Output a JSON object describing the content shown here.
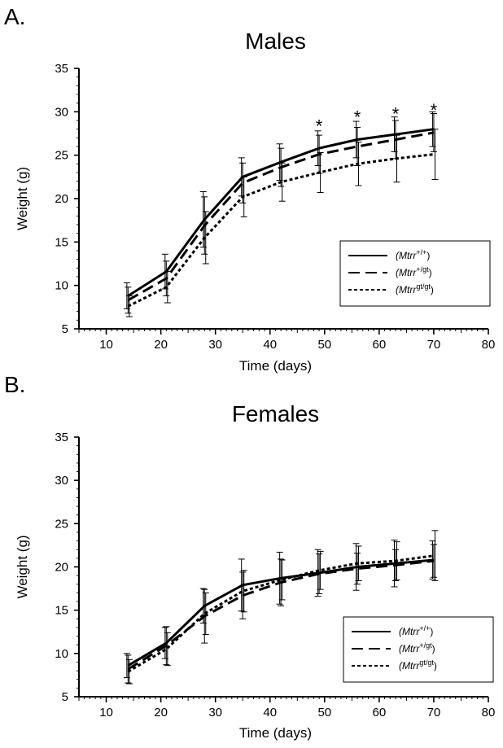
{
  "chart_data": [
    {
      "panel": "A.",
      "type": "line",
      "title": "Males",
      "xlabel": "Time (days)",
      "ylabel": "Weight (g)",
      "xlim": [
        5,
        80
      ],
      "ylim": [
        5,
        35
      ],
      "xticks": [
        10,
        20,
        30,
        40,
        50,
        60,
        70,
        80
      ],
      "yticks": [
        5,
        10,
        15,
        20,
        25,
        30,
        35
      ],
      "x": [
        14,
        21,
        28,
        35,
        42,
        49,
        56,
        63,
        70
      ],
      "series": [
        {
          "name": "(Mtrr+/+)",
          "legend_main": "(Mtrr",
          "legend_sup": "+/+",
          "legend_close": ")",
          "style": "solid",
          "values": [
            8.8,
            11.6,
            17.6,
            22.5,
            24.2,
            25.8,
            26.8,
            27.4,
            28.0
          ],
          "err": [
            1.5,
            2.0,
            3.2,
            2.2,
            2.1,
            2.0,
            2.1,
            2.0,
            2.0
          ]
        },
        {
          "name": "(Mtrr+/gt)",
          "legend_main": "(Mtrr",
          "legend_sup": "+/gt",
          "legend_close": ")",
          "style": "dashed",
          "values": [
            8.3,
            10.8,
            16.9,
            21.8,
            23.6,
            25.1,
            26.0,
            26.8,
            27.6
          ],
          "err": [
            1.5,
            2.0,
            3.3,
            2.3,
            2.2,
            2.2,
            2.2,
            2.2,
            2.2
          ]
        },
        {
          "name": "(Mtrrgt/gt)",
          "legend_main": "(Mtrr",
          "legend_sup": "gt/gt",
          "legend_close": ")",
          "style": "dotted",
          "values": [
            7.6,
            9.8,
            15.5,
            20.2,
            21.9,
            23.0,
            24.0,
            24.6,
            25.1
          ],
          "err": [
            1.2,
            1.8,
            3.0,
            2.3,
            2.2,
            2.3,
            2.5,
            2.7,
            2.9
          ]
        }
      ],
      "annotations": [
        {
          "text": "*",
          "x": 49,
          "y": 28.6
        },
        {
          "text": "*",
          "x": 56,
          "y": 29.6
        },
        {
          "text": "*",
          "x": 63,
          "y": 30.0
        },
        {
          "text": "*",
          "x": 70,
          "y": 30.4
        }
      ],
      "legend_position": "right, below data"
    },
    {
      "panel": "B.",
      "type": "line",
      "title": "Females",
      "xlabel": "Time (days)",
      "ylabel": "Weight (g)",
      "xlim": [
        5,
        80
      ],
      "ylim": [
        5,
        35
      ],
      "xticks": [
        10,
        20,
        30,
        40,
        50,
        60,
        70,
        80
      ],
      "yticks": [
        5,
        10,
        15,
        20,
        25,
        30,
        35
      ],
      "x": [
        14,
        21,
        28,
        35,
        42,
        49,
        56,
        63,
        70
      ],
      "series": [
        {
          "name": "(Mtrr+/+)",
          "legend_main": "(Mtrr",
          "legend_sup": "+/+",
          "legend_close": ")",
          "style": "solid",
          "values": [
            8.6,
            11.2,
            15.5,
            17.9,
            18.7,
            19.3,
            20.0,
            20.4,
            20.8
          ],
          "err": [
            1.4,
            1.8,
            2.0,
            3.0,
            3.0,
            2.7,
            2.7,
            2.7,
            2.2
          ]
        },
        {
          "name": "(Mtrr+/gt)",
          "legend_main": "(Mtrr",
          "legend_sup": "+/gt",
          "legend_close": ")",
          "style": "dashed",
          "values": [
            8.2,
            10.9,
            14.3,
            16.7,
            18.2,
            19.2,
            19.8,
            20.2,
            20.7
          ],
          "err": [
            1.6,
            2.2,
            3.1,
            2.7,
            2.7,
            2.3,
            1.8,
            1.8,
            1.9
          ]
        },
        {
          "name": "(Mtrrgt/gt)",
          "legend_main": "(Mtrr",
          "legend_sup": "gt/gt",
          "legend_close": ")",
          "style": "dotted",
          "values": [
            7.9,
            10.5,
            14.6,
            17.2,
            18.5,
            19.6,
            20.4,
            20.7,
            21.3
          ],
          "err": [
            1.4,
            1.9,
            2.4,
            2.4,
            2.3,
            2.2,
            2.0,
            2.2,
            2.9
          ]
        }
      ],
      "legend_position": "right, below data"
    }
  ]
}
